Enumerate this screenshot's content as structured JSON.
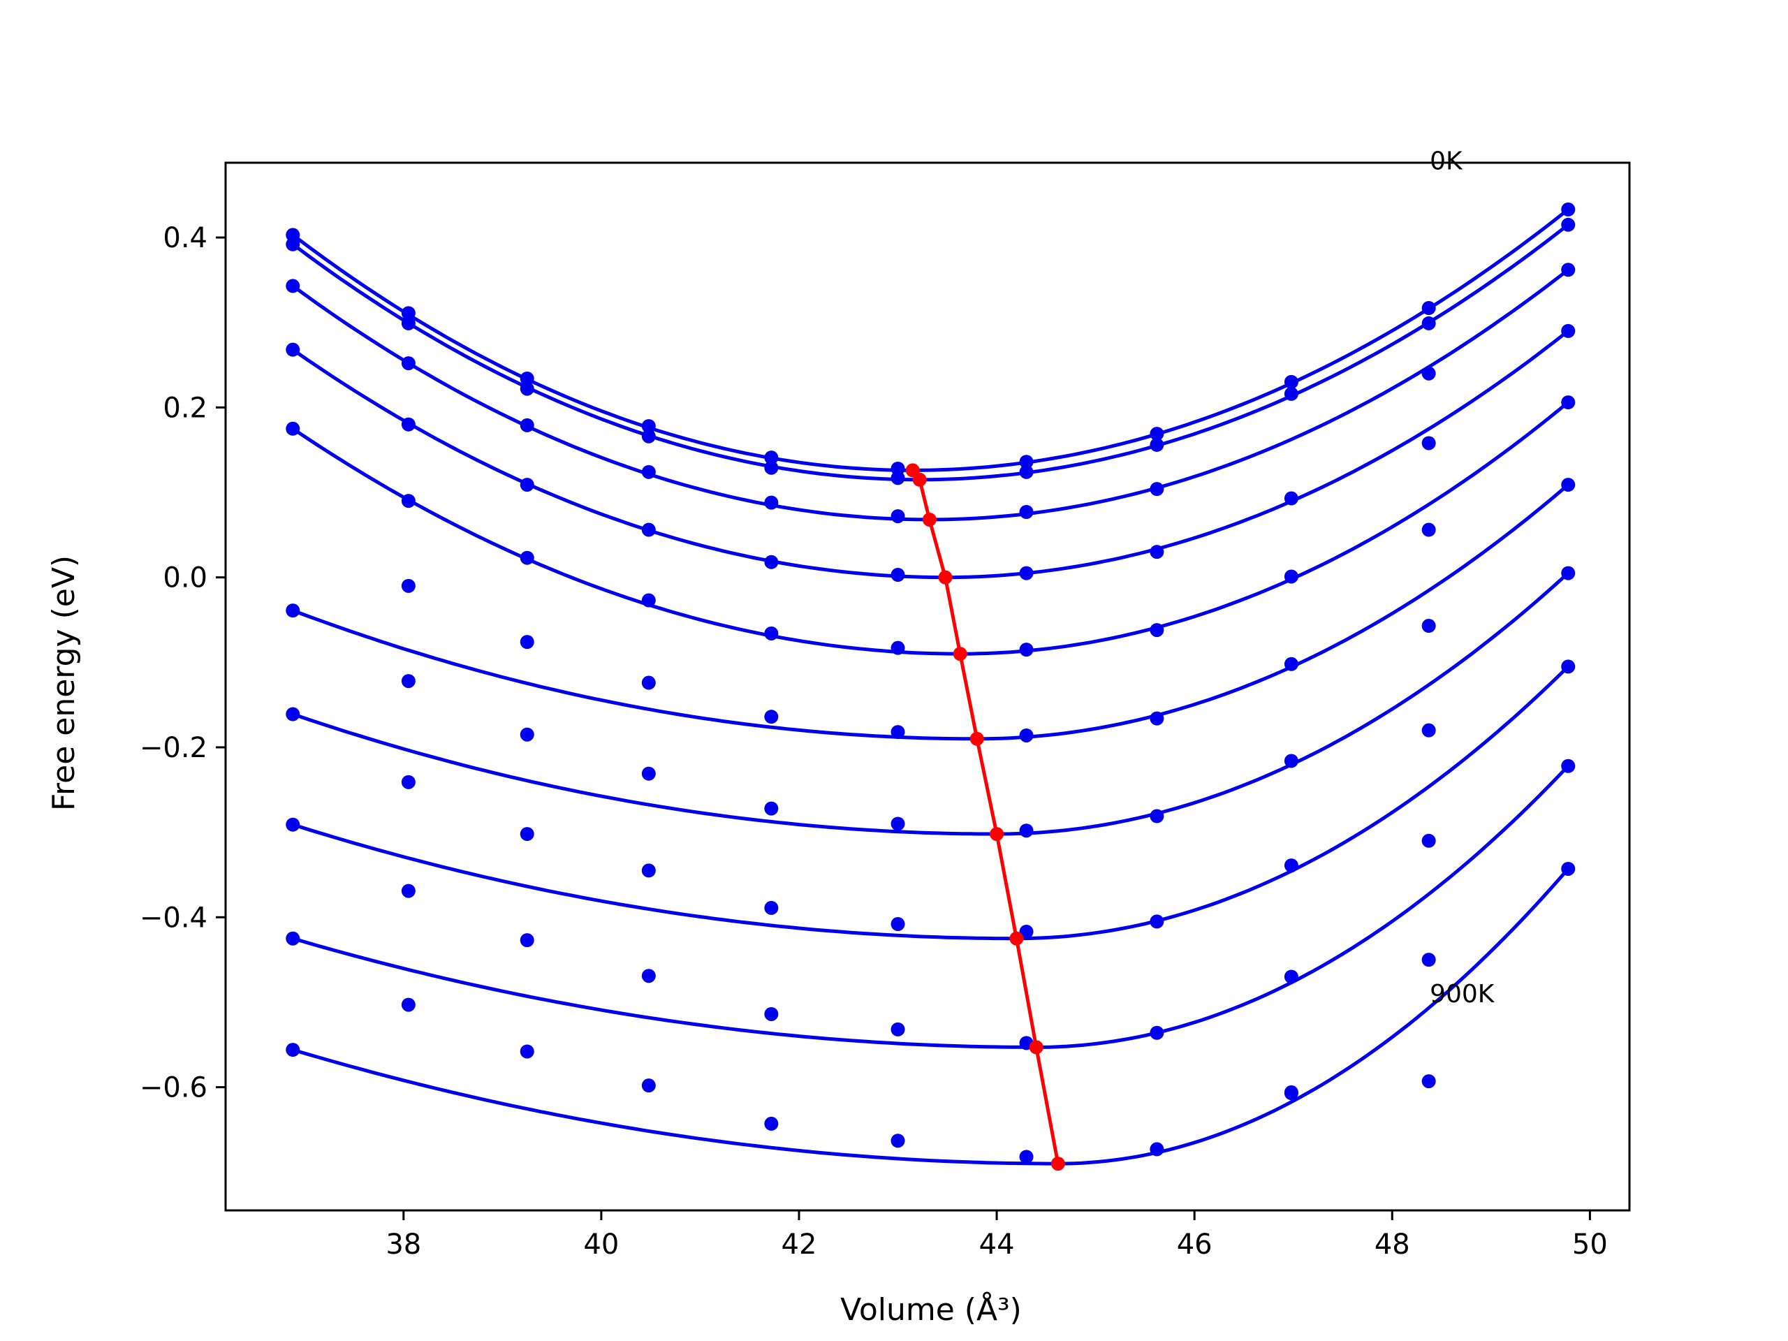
{
  "chart_data": {
    "type": "line",
    "title": "",
    "xlabel": "Volume (Å³)",
    "ylabel": "Free energy (eV)",
    "xlim": [
      36.2,
      50.4
    ],
    "ylim": [
      -0.745,
      0.488
    ],
    "xticks": [
      38,
      40,
      42,
      44,
      46,
      48,
      50
    ],
    "yticks": [
      -0.6,
      -0.4,
      -0.2,
      0.0,
      0.2,
      0.4
    ],
    "xtick_labels": [
      "38",
      "40",
      "42",
      "44",
      "46",
      "48",
      "50"
    ],
    "ytick_labels": [
      "−0.6",
      "−0.4",
      "−0.2",
      "0.0",
      "0.2",
      "0.4"
    ],
    "grid": false,
    "legend": "none",
    "x": [
      36.88,
      38.05,
      39.25,
      40.48,
      41.72,
      43.0,
      44.3,
      45.62,
      46.98,
      48.37,
      49.78
    ],
    "series": [
      {
        "y": [
          0.403,
          0.311,
          0.234,
          0.178,
          0.141,
          0.128,
          0.136,
          0.169,
          0.23,
          0.317,
          0.433
        ],
        "fit_min": [
          43.15,
          0.126
        ]
      },
      {
        "y": [
          0.392,
          0.299,
          0.222,
          0.166,
          0.129,
          0.117,
          0.124,
          0.156,
          0.216,
          0.299,
          0.415
        ],
        "fit_min": [
          43.22,
          0.115
        ]
      },
      {
        "y": [
          0.343,
          0.252,
          0.179,
          0.124,
          0.088,
          0.072,
          0.077,
          0.104,
          0.093,
          0.24,
          0.362
        ],
        "fit_min": [
          43.32,
          0.068
        ]
      },
      {
        "y": [
          0.268,
          0.18,
          0.109,
          0.056,
          0.018,
          0.003,
          0.005,
          0.03,
          0.001,
          0.158,
          0.29
        ],
        "fit_min": [
          43.48,
          0.0
        ]
      },
      {
        "y": [
          0.175,
          0.09,
          0.023,
          -0.027,
          -0.066,
          -0.083,
          -0.085,
          -0.062,
          -0.102,
          0.056,
          0.206
        ],
        "fit_min": [
          43.63,
          -0.09
        ]
      },
      {
        "y": [
          -0.039,
          -0.01,
          -0.076,
          -0.124,
          -0.164,
          -0.182,
          -0.186,
          -0.166,
          -0.216,
          -0.057,
          0.109
        ],
        "fit_min": [
          43.8,
          -0.19
        ]
      },
      {
        "y": [
          -0.161,
          -0.122,
          -0.185,
          -0.231,
          -0.272,
          -0.29,
          -0.298,
          -0.281,
          -0.339,
          -0.18,
          0.005
        ],
        "fit_min": [
          44.0,
          -0.302
        ]
      },
      {
        "y": [
          -0.291,
          -0.241,
          -0.302,
          -0.345,
          -0.389,
          -0.408,
          -0.417,
          -0.405,
          -0.47,
          -0.31,
          -0.105
        ],
        "fit_min": [
          44.2,
          -0.425
        ]
      },
      {
        "y": [
          -0.425,
          -0.369,
          -0.427,
          -0.469,
          -0.514,
          -0.532,
          -0.548,
          -0.536,
          -0.606,
          -0.45,
          -0.222
        ],
        "fit_min": [
          44.4,
          -0.553
        ]
      },
      {
        "y": [
          -0.556,
          -0.503,
          -0.558,
          -0.598,
          -0.643,
          -0.663,
          -0.682,
          -0.673,
          -0.607,
          -0.593,
          -0.343
        ],
        "fit_min": [
          44.62,
          -0.69
        ]
      }
    ],
    "annotations": [
      {
        "text": "0K",
        "x": 48.38,
        "y": 0.48
      },
      {
        "text": "900K",
        "x": 48.38,
        "y": -0.5
      }
    ],
    "colors": {
      "curves": "#0000ee",
      "minima": "#ff0000"
    }
  }
}
